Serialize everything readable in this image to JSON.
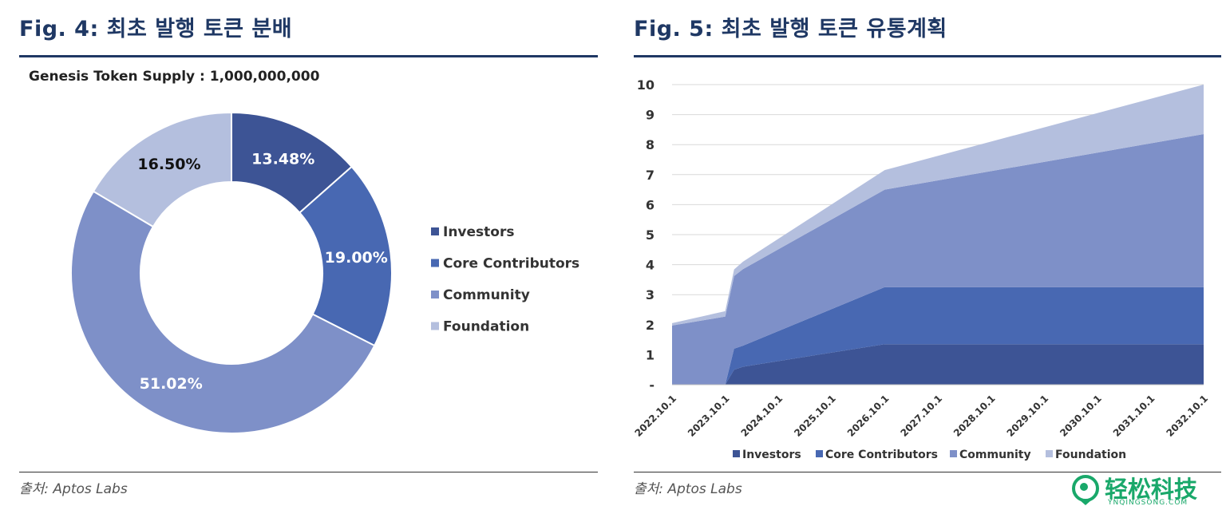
{
  "left": {
    "title": "Fig. 4: 최초 발행 토큰 분배",
    "supply_label": "Genesis Token Supply : 1,000,000,000",
    "source": "출처: Aptos Labs"
  },
  "right": {
    "title": "Fig. 5: 최초 발행 토큰 유통계획",
    "source": "출처: Aptos Labs"
  },
  "watermark": {
    "text": "轻松科技",
    "sub": "YNQINGSONG.COM"
  },
  "chart_data": [
    {
      "type": "pie",
      "variant": "donut",
      "title": "",
      "labels": [
        "Investors",
        "Core Contributors",
        "Community",
        "Foundation"
      ],
      "values": [
        13.48,
        19.0,
        51.02,
        16.5
      ],
      "value_labels": [
        "13.48%",
        "19.00%",
        "51.02%",
        "16.50%"
      ],
      "colors": [
        "#3d5495",
        "#4868b2",
        "#7e90c8",
        "#b4bfde"
      ],
      "legend": "right"
    },
    {
      "type": "area",
      "stacked": true,
      "title": "",
      "xlabel": "",
      "ylabel": "",
      "categories": [
        "2022.10.1",
        "2023.10.1",
        "2024.10.1",
        "2025.10.1",
        "2026.10.1",
        "2027.10.1",
        "2028.10.1",
        "2029.10.1",
        "2030.10.1",
        "2031.10.1",
        "2032.10.1"
      ],
      "x": [
        "2022.10.1",
        "2023.10.1",
        "2023.12.1",
        "2024.2.1",
        "2026.10.1",
        "2032.10.1"
      ],
      "series": [
        {
          "name": "Investors",
          "color": "#3d5495",
          "values": [
            0,
            0,
            0.5,
            0.6,
            1.35,
            1.35
          ]
        },
        {
          "name": "Core Contributors",
          "color": "#4868b2",
          "values": [
            0,
            0,
            0.7,
            0.7,
            1.9,
            1.9
          ]
        },
        {
          "name": "Community",
          "color": "#7e90c8",
          "values": [
            1.97,
            2.27,
            2.42,
            2.55,
            3.25,
            5.1
          ]
        },
        {
          "name": "Foundation",
          "color": "#b4bfde",
          "values": [
            0.08,
            0.18,
            0.22,
            0.25,
            0.65,
            1.65
          ]
        }
      ],
      "y_tick_labels": [
        "-",
        "1",
        "2",
        "3",
        "4",
        "5",
        "6",
        "7",
        "8",
        "9",
        "10"
      ],
      "ylim": [
        0,
        10
      ],
      "grid": true,
      "legend": "bottom"
    }
  ]
}
